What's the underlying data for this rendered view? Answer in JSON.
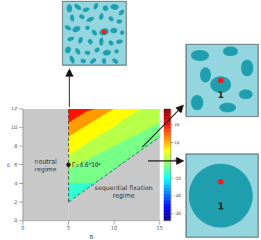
{
  "chart_data": {
    "type": "contour",
    "xlabel": "a",
    "ylabel": "c",
    "xlim": [
      0,
      15
    ],
    "ylim": [
      0,
      12
    ],
    "xticks": [
      0,
      5,
      10,
      15
    ],
    "yticks": [
      0,
      2,
      4,
      6,
      8,
      10,
      12
    ],
    "grid": false,
    "colorbar": {
      "range": [
        -34,
        29
      ],
      "ticks": [
        -30,
        -20,
        -10,
        0,
        10,
        20
      ]
    },
    "x": [
      5,
      6,
      7,
      8,
      9,
      10,
      11,
      12,
      13,
      14,
      15
    ],
    "bands": [
      {
        "range": [
          15,
          25
        ],
        "lower": [
          10.5,
          11.1,
          11.7,
          12,
          12,
          12,
          12,
          12,
          12,
          12,
          12
        ],
        "upper": [
          12,
          12,
          12,
          12,
          12,
          12,
          12,
          12,
          12,
          12,
          12
        ]
      },
      {
        "range": [
          8,
          15
        ],
        "lower": [
          9,
          9.6,
          10.2,
          10.8,
          11.4,
          12,
          12,
          12,
          12,
          12,
          12
        ],
        "upper": [
          10.5,
          11.1,
          11.7,
          12,
          12,
          12,
          12,
          12,
          12,
          12,
          12
        ]
      },
      {
        "range": [
          3,
          8
        ],
        "lower": [
          7,
          7.6,
          8.3,
          8.9,
          9.5,
          10.1,
          10.8,
          11.4,
          12,
          12,
          12
        ],
        "upper": [
          9,
          9.6,
          10.2,
          10.8,
          11.4,
          12,
          12,
          12,
          12,
          12,
          12
        ]
      },
      {
        "range": [
          -1,
          3
        ],
        "lower": [
          5.5,
          6,
          6.5,
          7,
          7.5,
          8,
          8.5,
          9,
          9.5,
          10,
          10.5
        ],
        "upper": [
          7,
          7.6,
          8.3,
          8.9,
          9.5,
          10.1,
          10.8,
          11.4,
          12,
          12,
          12
        ]
      },
      {
        "range": [
          -5,
          -1
        ],
        "lower": [
          4,
          4,
          4,
          4.1,
          4.8,
          5.5,
          6.2,
          6.9,
          7.6,
          8.3,
          9
        ],
        "upper": [
          5.5,
          6,
          6.5,
          7,
          7.5,
          8,
          8.5,
          9,
          9.5,
          10,
          10.5
        ]
      },
      {
        "range": [
          -10,
          -5
        ],
        "lower": [
          2,
          2.7,
          3.4,
          4.1,
          4.8,
          5.5,
          6.2,
          6.9,
          7.6,
          8.3,
          9
        ],
        "upper": [
          4,
          4,
          4,
          4.1,
          4.8,
          5.5,
          6.2,
          6.9,
          7.6,
          8.3,
          9
        ]
      }
    ],
    "regions": [
      {
        "label": "neutral regime",
        "x": [
          0,
          5
        ],
        "lower": [
          0,
          0
        ],
        "upper": [
          12,
          12
        ],
        "color": "#c8c8c8"
      },
      {
        "label": "sequential fixation regime",
        "x": [
          5,
          15
        ],
        "lower": [
          0,
          0
        ],
        "upper": [
          2,
          9
        ],
        "color": "#c8c8c8"
      }
    ],
    "boundaries": [
      {
        "x": [
          5,
          5
        ],
        "y": [
          2,
          12
        ],
        "line_style": "dashed"
      },
      {
        "x": [
          5,
          15
        ],
        "y": [
          2,
          9
        ],
        "line_style": "dashed"
      }
    ],
    "point": {
      "x": 5,
      "y": 6,
      "label": "Γ=4.6*10⁴",
      "color": "#000000",
      "marker": "circle"
    },
    "inset_labels": [
      "1",
      "1"
    ]
  }
}
